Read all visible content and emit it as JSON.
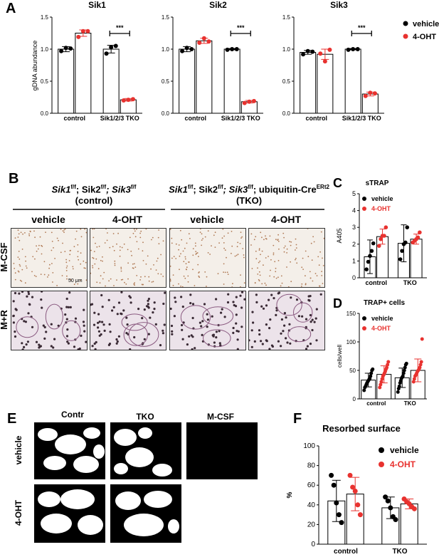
{
  "panels": {
    "A": {
      "letter": "A",
      "ylabel": "gDNA abundance",
      "xcats": [
        "control",
        "Sik1/2/3 TKO"
      ],
      "yticks": [
        "0.0",
        "0.5",
        "1.0",
        "1.5"
      ],
      "sig": "***",
      "legend": {
        "vehicle": "vehicle",
        "oht": "4-OHT"
      }
    },
    "B": {
      "letter": "B",
      "ctrl_genotype": {
        "p1": "Sik1",
        "s1": "f/f",
        "p2": "; Sik2",
        "s2": "f/f",
        "p3": "; Sik3",
        "s3": "f/f"
      },
      "ctrl_label": "(control)",
      "tko_genotype": {
        "p1": "Sik1",
        "s1": "f/f",
        "p2": "; Sik2",
        "s2": "f/f",
        "p3": "; Sik3",
        "s3": "f/f",
        "p4": "; ubiquitin-Cre",
        "s4": "ERt2"
      },
      "tko_label": "(TKO)",
      "col_labels": [
        "vehicle",
        "4-OHT",
        "vehicle",
        "4-OHT"
      ],
      "row_labels": [
        "M-CSF",
        "M+R"
      ],
      "scale_bar": "50 μm"
    },
    "C": {
      "letter": "C",
      "title": "sTRAP",
      "ylabel": "A405",
      "yticks": [
        "0",
        "1",
        "2",
        "3",
        "4",
        "5"
      ],
      "xcats": [
        "control",
        "TKO"
      ],
      "legend": {
        "vehicle": "vehicle",
        "oht": "4-OHT"
      }
    },
    "D": {
      "letter": "D",
      "title": "TRAP+ cells",
      "ylabel": "cells/well",
      "yticks": [
        "0",
        "50",
        "100",
        "150"
      ],
      "xcats": [
        "control",
        "TKO"
      ],
      "legend": {
        "vehicle": "vehicle",
        "oht": "4-OHT"
      }
    },
    "E": {
      "letter": "E",
      "col_labels": [
        "Contr",
        "TKO",
        "M-CSF"
      ],
      "row_labels": [
        "vehicle",
        "4-OHT"
      ]
    },
    "F": {
      "letter": "F",
      "title": "Resorbed surface",
      "ylabel": "%",
      "yticks": [
        "0",
        "20",
        "40",
        "60",
        "80",
        "100"
      ],
      "xcats": [
        "control",
        "TKO"
      ],
      "legend": {
        "vehicle": "vehicle",
        "oht": "4-OHT"
      }
    }
  },
  "colors": {
    "vehicle": "#000000",
    "oht": "#e8322f"
  },
  "chart_data": [
    {
      "id": "A-Sik1",
      "type": "bar",
      "title": "Sik1",
      "categories": [
        "control",
        "Sik1/2/3 TKO"
      ],
      "ylim": [
        0,
        1.5
      ],
      "series": [
        {
          "name": "vehicle",
          "values": [
            1.0,
            1.0
          ],
          "errors": [
            0.04,
            0.06
          ],
          "points": [
            [
              0.97,
              1.02,
              1.01
            ],
            [
              0.93,
              1.03,
              1.05
            ]
          ]
        },
        {
          "name": "4-OHT",
          "values": [
            1.25,
            0.21
          ],
          "errors": [
            0.05,
            0.02
          ],
          "points": [
            [
              1.19,
              1.28,
              1.28
            ],
            [
              0.2,
              0.21,
              0.22
            ]
          ]
        }
      ]
    },
    {
      "id": "A-Sik2",
      "type": "bar",
      "title": "Sik2",
      "categories": [
        "control",
        "Sik1/2/3 TKO"
      ],
      "ylim": [
        0,
        1.5
      ],
      "series": [
        {
          "name": "vehicle",
          "values": [
            1.0,
            1.0
          ],
          "errors": [
            0.04,
            0.01
          ],
          "points": [
            [
              0.97,
              1.02,
              1.0
            ],
            [
              0.99,
              1.0,
              1.0
            ]
          ]
        },
        {
          "name": "4-OHT",
          "values": [
            1.13,
            0.18
          ],
          "errors": [
            0.04,
            0.02
          ],
          "points": [
            [
              1.1,
              1.17,
              1.12
            ],
            [
              0.16,
              0.18,
              0.19
            ]
          ]
        }
      ]
    },
    {
      "id": "A-Sik3",
      "type": "bar",
      "title": "Sik3",
      "categories": [
        "control",
        "Sik1/2/3 TKO"
      ],
      "ylim": [
        0,
        1.5
      ],
      "series": [
        {
          "name": "vehicle",
          "values": [
            0.95,
            1.0
          ],
          "errors": [
            0.03,
            0.01
          ],
          "points": [
            [
              0.92,
              0.97,
              0.96
            ],
            [
              0.99,
              1.0,
              1.0
            ]
          ]
        },
        {
          "name": "4-OHT",
          "values": [
            0.92,
            0.3
          ],
          "errors": [
            0.08,
            0.03
          ],
          "points": [
            [
              0.93,
              0.81,
              0.99
            ],
            [
              0.27,
              0.32,
              0.31
            ]
          ]
        }
      ]
    },
    {
      "id": "C",
      "type": "bar",
      "title": "sTRAP",
      "categories": [
        "control",
        "TKO"
      ],
      "ylim": [
        0,
        5
      ],
      "series": [
        {
          "name": "vehicle",
          "values": [
            1.25,
            2.05
          ],
          "errors": [
            1.0,
            1.1
          ],
          "points": [
            [
              0.5,
              0.95,
              1.3,
              1.6,
              2.05
            ],
            [
              1.1,
              1.6,
              2.0,
              2.1,
              3.0
            ]
          ]
        },
        {
          "name": "4-OHT",
          "values": [
            2.45,
            2.3
          ],
          "errors": [
            0.45,
            0.3
          ],
          "points": [
            [
              1.9,
              2.3,
              2.5,
              2.5,
              3.0
            ],
            [
              2.1,
              2.2,
              2.3,
              2.4,
              2.7
            ]
          ]
        }
      ]
    },
    {
      "id": "D",
      "type": "bar",
      "title": "TRAP+ cells",
      "categories": [
        "control",
        "TKO"
      ],
      "ylim": [
        0,
        150
      ],
      "series": [
        {
          "name": "vehicle",
          "values": [
            33,
            37
          ],
          "errors": [
            12,
            17
          ],
          "points": [
            [
              15,
              20,
              22,
              25,
              28,
              30,
              32,
              34,
              36,
              40,
              45,
              50,
              52
            ],
            [
              12,
              18,
              22,
              28,
              32,
              36,
              38,
              40,
              45,
              50,
              55,
              60,
              62
            ]
          ]
        },
        {
          "name": "4-OHT",
          "values": [
            43,
            50
          ],
          "errors": [
            15,
            20
          ],
          "points": [
            [
              20,
              25,
              30,
              35,
              40,
              42,
              45,
              48,
              52,
              55,
              60,
              65
            ],
            [
              30,
              35,
              40,
              42,
              45,
              48,
              50,
              52,
              55,
              60,
              65,
              105
            ]
          ]
        }
      ]
    },
    {
      "id": "F",
      "type": "bar",
      "title": "Resorbed surface",
      "categories": [
        "control",
        "TKO"
      ],
      "ylim": [
        0,
        100
      ],
      "series": [
        {
          "name": "vehicle",
          "values": [
            44,
            37
          ],
          "errors": [
            21,
            11
          ],
          "points": [
            [
              70,
              60,
              42,
              30,
              22
            ],
            [
              48,
              44,
              37,
              28,
              25
            ]
          ]
        },
        {
          "name": "4-OHT",
          "values": [
            51,
            41
          ],
          "errors": [
            17,
            5
          ],
          "points": [
            [
              70,
              58,
              54,
              40,
              30
            ],
            [
              46,
              43,
              41,
              38,
              36
            ]
          ]
        }
      ]
    }
  ]
}
